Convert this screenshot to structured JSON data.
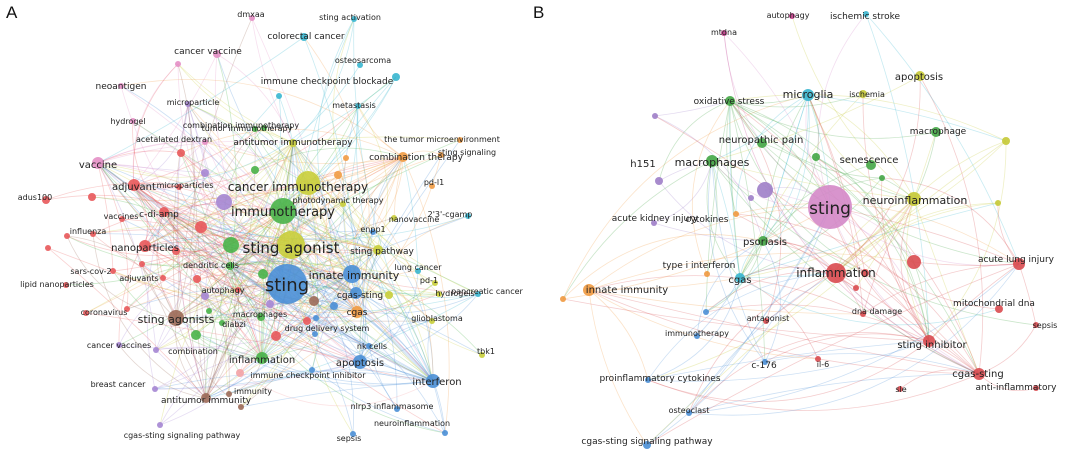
{
  "panels": [
    {
      "letter": "A",
      "clusters": {
        "red": "#e8585a",
        "green": "#49b349",
        "blue": "#4a8fd6",
        "yellow": "#c9ce3a",
        "purple": "#a586d3",
        "cyan": "#39b6cf",
        "orange": "#f19b44",
        "pink": "#e48fc5",
        "brown": "#9c6a58",
        "lightpink": "#f3a2a6"
      },
      "nodes": [
        {
          "label": "sting",
          "cluster": "blue"
        },
        {
          "label": "sting agonist",
          "cluster": "yellow"
        },
        {
          "label": "immunotherapy",
          "cluster": "green"
        },
        {
          "label": "cancer immunotherapy",
          "cluster": "yellow"
        },
        {
          "label": "innate immunity",
          "cluster": "blue"
        },
        {
          "label": "sting agonists",
          "cluster": "brown"
        },
        {
          "label": "inflammation",
          "cluster": "green"
        },
        {
          "label": "adjuvant",
          "cluster": "red"
        },
        {
          "label": "vaccine",
          "cluster": "pink"
        },
        {
          "label": "nanoparticles",
          "cluster": "red"
        },
        {
          "label": "cgas-sting",
          "cluster": "blue"
        },
        {
          "label": "cgas",
          "cluster": "orange"
        },
        {
          "label": "apoptosis",
          "cluster": "blue"
        },
        {
          "label": "interferon",
          "cluster": "blue"
        },
        {
          "label": "antitumor immunity",
          "cluster": "brown"
        },
        {
          "label": "c-di-amp",
          "cluster": "red"
        },
        {
          "label": "sting pathway",
          "cluster": "yellow"
        },
        {
          "label": "combination therapy",
          "cluster": "orange"
        },
        {
          "label": "antitumor immunotherapy",
          "cluster": "yellow"
        },
        {
          "label": "dendritic cells",
          "cluster": "green"
        },
        {
          "label": "macrophages",
          "cluster": "green"
        },
        {
          "label": "neoantigen",
          "cluster": "pink"
        },
        {
          "label": "cancer vaccine",
          "cluster": "pink"
        },
        {
          "label": "dmxaa",
          "cluster": "pink"
        },
        {
          "label": "sting activation",
          "cluster": "cyan"
        },
        {
          "label": "colorectal cancer",
          "cluster": "cyan"
        },
        {
          "label": "osteosarcoma",
          "cluster": "cyan"
        },
        {
          "label": "immune checkpoint blockade",
          "cluster": "cyan"
        },
        {
          "label": "metastasis",
          "cluster": "cyan"
        },
        {
          "label": "tumor immunotherapy",
          "cluster": "green"
        },
        {
          "label": "microparticle",
          "cluster": "purple"
        },
        {
          "label": "hydrogel",
          "cluster": "pink"
        },
        {
          "label": "combination immunotherapy",
          "cluster": "green"
        },
        {
          "label": "acetalated dextran",
          "cluster": "pink"
        },
        {
          "label": "the tumor microenvironment",
          "cluster": "orange"
        },
        {
          "label": "sting signaling",
          "cluster": "orange"
        },
        {
          "label": "microparticles",
          "cluster": "red"
        },
        {
          "label": "adus100",
          "cluster": "red"
        },
        {
          "label": "vaccines",
          "cluster": "red"
        },
        {
          "label": "influenza",
          "cluster": "red"
        },
        {
          "label": "sars-cov-2",
          "cluster": "red"
        },
        {
          "label": "adjuvants",
          "cluster": "red"
        },
        {
          "label": "lipid nanoparticles",
          "cluster": "red"
        },
        {
          "label": "coronavirus",
          "cluster": "red"
        },
        {
          "label": "autophagy",
          "cluster": "red"
        },
        {
          "label": "diabzi",
          "cluster": "green"
        },
        {
          "label": "cancer vaccines",
          "cluster": "purple"
        },
        {
          "label": "combination",
          "cluster": "purple"
        },
        {
          "label": "breast cancer",
          "cluster": "purple"
        },
        {
          "label": "cgas-sting signaling pathway",
          "cluster": "purple"
        },
        {
          "label": "immunity",
          "cluster": "brown"
        },
        {
          "label": "immune checkpoint inhibitor",
          "cluster": "blue"
        },
        {
          "label": "drug delivery system",
          "cluster": "blue"
        },
        {
          "label": "nk cells",
          "cluster": "blue"
        },
        {
          "label": "nlrp3 inflammasome",
          "cluster": "blue"
        },
        {
          "label": "sepsis",
          "cluster": "blue"
        },
        {
          "label": "neuroinflammation",
          "cluster": "blue"
        },
        {
          "label": "glioblastoma",
          "cluster": "yellow"
        },
        {
          "label": "tbk1",
          "cluster": "yellow"
        },
        {
          "label": "hydrogels",
          "cluster": "yellow"
        },
        {
          "label": "pd-1",
          "cluster": "yellow"
        },
        {
          "label": "pancreatic cancer",
          "cluster": "cyan"
        },
        {
          "label": "enpp1",
          "cluster": "blue"
        },
        {
          "label": "lung cancer",
          "cluster": "cyan"
        },
        {
          "label": "nanovaccine",
          "cluster": "yellow"
        },
        {
          "label": "2'3'-cgamp",
          "cluster": "cyan"
        },
        {
          "label": "photodynamic therapy",
          "cluster": "yellow"
        },
        {
          "label": "pd-l1",
          "cluster": "orange"
        }
      ]
    },
    {
      "letter": "B",
      "clusters": {
        "pink": "#d488c8",
        "red": "#d94a4f",
        "green": "#44a645",
        "blue": "#4a8fd6",
        "cyan": "#39b6cf",
        "yellow": "#c5c935",
        "purple": "#9f7ec8",
        "orange": "#f0993f",
        "magenta": "#c23a88"
      },
      "nodes": [
        {
          "label": "sting",
          "cluster": "pink"
        },
        {
          "label": "inflammation",
          "cluster": "red"
        },
        {
          "label": "neuroinflammation",
          "cluster": "yellow"
        },
        {
          "label": "microglia",
          "cluster": "cyan"
        },
        {
          "label": "macrophages",
          "cluster": "green"
        },
        {
          "label": "innate immunity",
          "cluster": "orange"
        },
        {
          "label": "cgas",
          "cluster": "cyan"
        },
        {
          "label": "sting inhibitor",
          "cluster": "red"
        },
        {
          "label": "cgas-sting",
          "cluster": "red"
        },
        {
          "label": "acute lung injury",
          "cluster": "red"
        },
        {
          "label": "psoriasis",
          "cluster": "green"
        },
        {
          "label": "oxidative stress",
          "cluster": "green"
        },
        {
          "label": "neuropathic pain",
          "cluster": "green"
        },
        {
          "label": "senescence",
          "cluster": "green"
        },
        {
          "label": "macrophage",
          "cluster": "green"
        },
        {
          "label": "apoptosis",
          "cluster": "yellow"
        },
        {
          "label": "ischemia",
          "cluster": "yellow"
        },
        {
          "label": "ischemic stroke",
          "cluster": "cyan"
        },
        {
          "label": "autophagy",
          "cluster": "magenta"
        },
        {
          "label": "mtdna",
          "cluster": "magenta"
        },
        {
          "label": "h151",
          "cluster": "purple"
        },
        {
          "label": "acute kidney injury",
          "cluster": "purple"
        },
        {
          "label": "cytokines",
          "cluster": "orange"
        },
        {
          "label": "type i interferon",
          "cluster": "orange"
        },
        {
          "label": "antagonist",
          "cluster": "red"
        },
        {
          "label": "mitochondrial dna",
          "cluster": "red"
        },
        {
          "label": "dna damage",
          "cluster": "red"
        },
        {
          "label": "sepsis",
          "cluster": "red"
        },
        {
          "label": "il-6",
          "cluster": "red"
        },
        {
          "label": "sle",
          "cluster": "red"
        },
        {
          "label": "anti-inflammatory",
          "cluster": "red"
        },
        {
          "label": "immunotherapy",
          "cluster": "blue"
        },
        {
          "label": "c-176",
          "cluster": "blue"
        },
        {
          "label": "proinflammatory cytokines",
          "cluster": "blue"
        },
        {
          "label": "osteoclast",
          "cluster": "blue"
        },
        {
          "label": "cgas-sting signaling pathway",
          "cluster": "blue"
        }
      ]
    }
  ]
}
